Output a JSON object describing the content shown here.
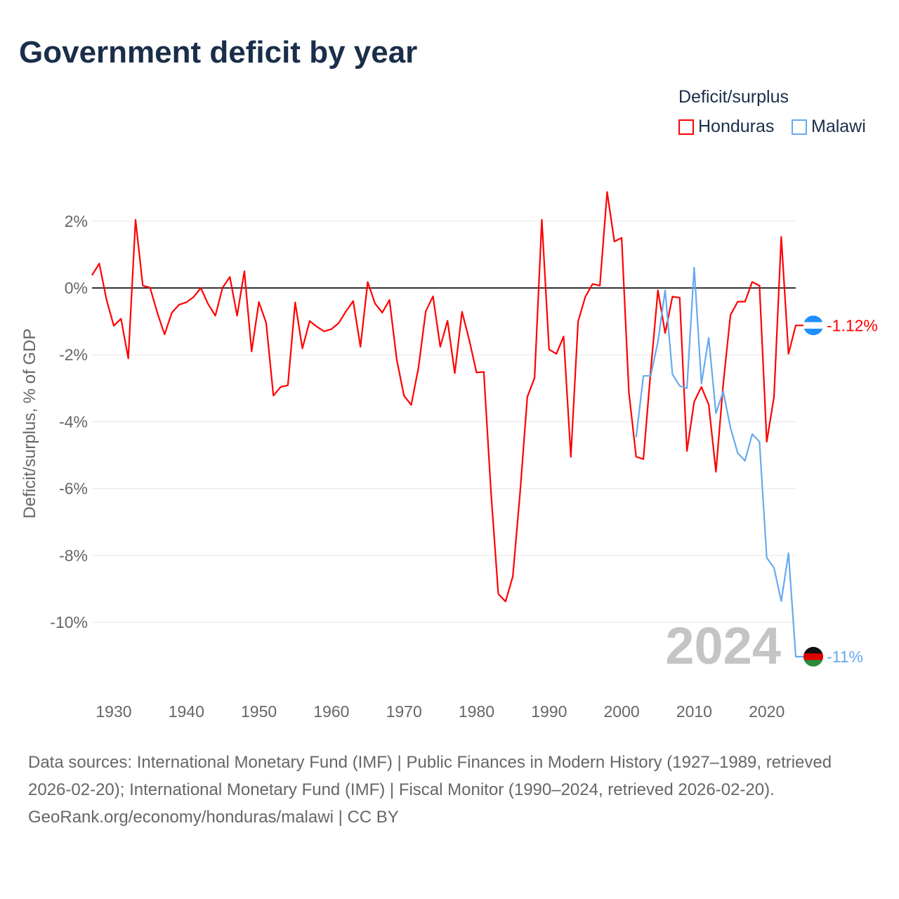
{
  "title": "Government deficit by year",
  "legend": {
    "title": "Deficit/surplus",
    "items": [
      {
        "name": "Honduras",
        "color": "#ff0000"
      },
      {
        "name": "Malawi",
        "color": "#66aaee"
      }
    ]
  },
  "year_watermark": "2024",
  "sources": "Data sources: International Monetary Fund (IMF) | Public Finances in Modern History (1927–1989, retrieved 2026-02-20); International Monetary Fund (IMF) | Fiscal Monitor (1990–2024, retrieved 2026-02-20).",
  "credit": "GeoRank.org/economy/honduras/malawi | CC BY",
  "chart_data": {
    "type": "line",
    "ylabel": "Deficit/surplus, % of GDP",
    "xlabel": "",
    "xlim": [
      1927,
      2024
    ],
    "ylim": [
      -11.5,
      3
    ],
    "x_ticks": [
      1930,
      1940,
      1950,
      1960,
      1970,
      1980,
      1990,
      2000,
      2010,
      2020
    ],
    "y_ticks": [
      2,
      0,
      -2,
      -4,
      -6,
      -8,
      -10
    ],
    "y_tick_labels": [
      "2%",
      "0%",
      "-2%",
      "-4%",
      "-6%",
      "-8%",
      "-10%"
    ],
    "grid": true,
    "series": [
      {
        "name": "Honduras",
        "color": "#ff0000",
        "start_year": 1927,
        "end_label": "-1.12%",
        "values": [
          0.38,
          0.73,
          -0.35,
          -1.13,
          -0.92,
          -2.11,
          2.04,
          0.07,
          0.01,
          -0.74,
          -1.39,
          -0.74,
          -0.5,
          -0.43,
          -0.27,
          0,
          -0.48,
          -0.83,
          0.01,
          0.33,
          -0.83,
          0.5,
          -1.9,
          -0.42,
          -1.04,
          -3.22,
          -2.96,
          -2.91,
          -0.43,
          -1.81,
          -0.99,
          -1.16,
          -1.3,
          -1.23,
          -1.05,
          -0.7,
          -0.39,
          -1.76,
          0.18,
          -0.46,
          -0.74,
          -0.36,
          -2.14,
          -3.22,
          -3.5,
          -2.38,
          -0.7,
          -0.25,
          -1.76,
          -0.98,
          -2.55,
          -0.71,
          -1.56,
          -2.53,
          -2.51,
          -6.13,
          -9.15,
          -9.38,
          -8.63,
          -6.13,
          -3.26,
          -2.69,
          2.04,
          -1.84,
          -1.97,
          -1.45,
          -5.05,
          -1.0,
          -0.26,
          0.12,
          0.07,
          2.87,
          1.39,
          1.5,
          -3.12,
          -5.05,
          -5.12,
          -2.5,
          -0.07,
          -1.35,
          -0.26,
          -0.29,
          -4.88,
          -3.4,
          -2.96,
          -3.49,
          -5.5,
          -2.88,
          -0.81,
          -0.41,
          -0.41,
          0.18,
          0.07,
          -4.6,
          -3.26,
          1.53,
          -1.97,
          -1.12
        ]
      },
      {
        "name": "Malawi",
        "color": "#66aaee",
        "start_year": 2002,
        "end_label": "-11%",
        "values": [
          -4.47,
          -2.63,
          -2.63,
          -1.61,
          -0.07,
          -2.58,
          -2.93,
          -3.0,
          0.61,
          -2.86,
          -1.49,
          -3.75,
          -3.09,
          -4.18,
          -4.94,
          -5.17,
          -4.37,
          -4.6,
          -8.07,
          -8.37,
          -9.37,
          -7.93,
          -11.03
        ]
      }
    ]
  }
}
